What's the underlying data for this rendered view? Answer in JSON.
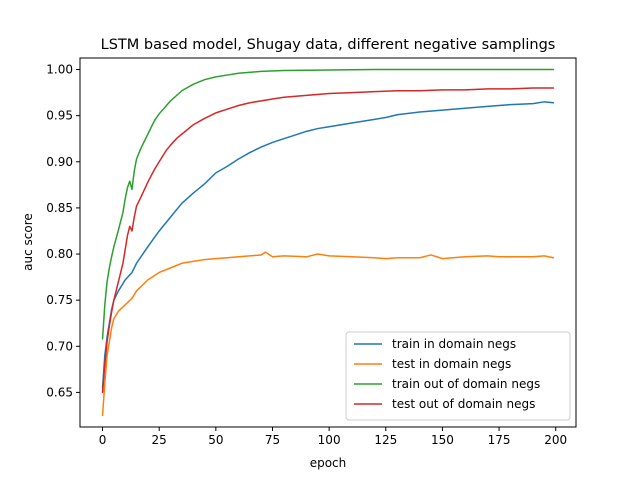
{
  "chart_data": {
    "type": "line",
    "title": "LSTM based model, Shugay data, different negative samplings",
    "xlabel": "epoch",
    "ylabel": "auc score",
    "xlim": [
      -9.95,
      208.95
    ],
    "ylim": [
      0.6125,
      1.0125
    ],
    "xticks": [
      0,
      25,
      50,
      75,
      100,
      125,
      150,
      175,
      200
    ],
    "yticks": [
      0.65,
      0.7,
      0.75,
      0.8,
      0.85,
      0.9,
      0.95,
      1.0
    ],
    "xtick_labels": [
      "0",
      "25",
      "50",
      "75",
      "100",
      "125",
      "150",
      "175",
      "200"
    ],
    "ytick_labels": [
      "0.65",
      "0.70",
      "0.75",
      "0.80",
      "0.85",
      "0.90",
      "0.95",
      "1.00"
    ],
    "grid": false,
    "legend_position": "lower-right",
    "series": [
      {
        "name": "train in domain negs",
        "color": "#1f77b4",
        "x": [
          0,
          1,
          2,
          3,
          4,
          5,
          7,
          10,
          13,
          15,
          20,
          25,
          30,
          35,
          40,
          45,
          50,
          55,
          60,
          65,
          70,
          75,
          80,
          85,
          90,
          95,
          100,
          110,
          120,
          125,
          130,
          140,
          150,
          160,
          170,
          175,
          180,
          190,
          195,
          199
        ],
        "y": [
          0.655,
          0.69,
          0.71,
          0.725,
          0.74,
          0.75,
          0.76,
          0.772,
          0.78,
          0.79,
          0.808,
          0.825,
          0.84,
          0.855,
          0.866,
          0.876,
          0.888,
          0.895,
          0.903,
          0.91,
          0.916,
          0.921,
          0.925,
          0.929,
          0.933,
          0.936,
          0.938,
          0.942,
          0.946,
          0.948,
          0.951,
          0.954,
          0.956,
          0.958,
          0.96,
          0.961,
          0.962,
          0.963,
          0.965,
          0.964
        ]
      },
      {
        "name": "test in domain negs",
        "color": "#ff7f0e",
        "x": [
          0,
          1,
          2,
          3,
          4,
          5,
          7,
          10,
          13,
          15,
          20,
          25,
          30,
          35,
          40,
          45,
          50,
          55,
          60,
          65,
          70,
          72,
          75,
          80,
          90,
          95,
          100,
          110,
          120,
          125,
          130,
          140,
          145,
          150,
          160,
          170,
          175,
          180,
          190,
          195,
          199
        ],
        "y": [
          0.625,
          0.66,
          0.69,
          0.705,
          0.72,
          0.73,
          0.738,
          0.745,
          0.752,
          0.76,
          0.772,
          0.78,
          0.785,
          0.79,
          0.792,
          0.794,
          0.795,
          0.796,
          0.797,
          0.798,
          0.799,
          0.802,
          0.797,
          0.798,
          0.797,
          0.8,
          0.798,
          0.797,
          0.796,
          0.795,
          0.796,
          0.796,
          0.799,
          0.795,
          0.797,
          0.798,
          0.797,
          0.797,
          0.797,
          0.798,
          0.796
        ]
      },
      {
        "name": "train out of domain negs",
        "color": "#2ca02c",
        "x": [
          0,
          1,
          2,
          3,
          4,
          5,
          7,
          9,
          10,
          11,
          12,
          13,
          14,
          15,
          17,
          20,
          23,
          25,
          30,
          35,
          40,
          45,
          50,
          55,
          60,
          70,
          80,
          100,
          120,
          150,
          199
        ],
        "y": [
          0.708,
          0.745,
          0.77,
          0.785,
          0.797,
          0.808,
          0.826,
          0.845,
          0.86,
          0.872,
          0.879,
          0.87,
          0.89,
          0.903,
          0.915,
          0.93,
          0.945,
          0.952,
          0.966,
          0.977,
          0.984,
          0.989,
          0.992,
          0.994,
          0.996,
          0.998,
          0.999,
          0.9995,
          1.0,
          1.0,
          1.0
        ]
      },
      {
        "name": "test out of domain negs",
        "color": "#d62728",
        "x": [
          0,
          1,
          2,
          3,
          4,
          5,
          7,
          9,
          10,
          11,
          12,
          13,
          14,
          15,
          17,
          20,
          23,
          25,
          28,
          30,
          33,
          35,
          40,
          45,
          50,
          55,
          60,
          65,
          70,
          75,
          80,
          90,
          100,
          110,
          120,
          130,
          140,
          150,
          160,
          170,
          175,
          180,
          190,
          199
        ],
        "y": [
          0.65,
          0.68,
          0.705,
          0.722,
          0.737,
          0.75,
          0.77,
          0.79,
          0.805,
          0.82,
          0.83,
          0.825,
          0.84,
          0.852,
          0.862,
          0.878,
          0.892,
          0.9,
          0.912,
          0.918,
          0.926,
          0.93,
          0.94,
          0.947,
          0.953,
          0.957,
          0.961,
          0.964,
          0.966,
          0.968,
          0.97,
          0.972,
          0.974,
          0.975,
          0.976,
          0.977,
          0.977,
          0.978,
          0.978,
          0.979,
          0.979,
          0.979,
          0.98,
          0.98
        ]
      }
    ]
  }
}
